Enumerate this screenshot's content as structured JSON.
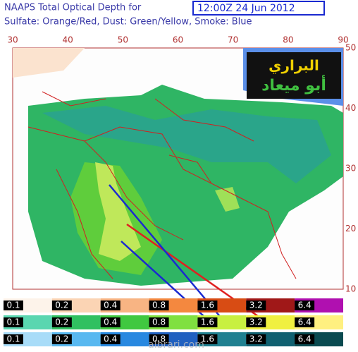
{
  "header": {
    "title": "NAAPS Total Optical Depth for",
    "date": "12:00Z 24 Jun 2012",
    "subtitle": "Sulfate: Orange/Red, Dust: Green/Yellow, Smoke: Blue"
  },
  "map": {
    "lon_ticks": [
      30,
      40,
      50,
      60,
      70,
      80,
      90
    ],
    "lat_ticks": [
      50,
      40,
      30,
      20,
      10
    ]
  },
  "watermark": {
    "line1": "البراري",
    "line2": "أبو ميعاد",
    "site": "albrari.com"
  },
  "legend": {
    "rows": [
      {
        "labels": [
          0.1,
          0.2,
          0.4,
          0.8,
          1.6,
          3.2,
          6.4
        ]
      },
      {
        "labels": [
          0.1,
          0.2,
          0.4,
          0.8,
          1.6,
          3.2,
          6.4
        ]
      },
      {
        "labels": [
          0.1,
          0.2,
          0.4,
          0.8,
          1.6,
          3.2,
          6.4
        ]
      }
    ]
  }
}
